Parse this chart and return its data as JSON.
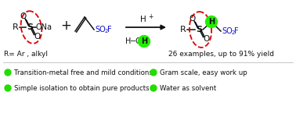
{
  "bg_color": "#ffffff",
  "green_bullet": "#22dd00",
  "green_bright": "#22ee00",
  "red_dashed": "#dd0000",
  "blue_text": "#1111cc",
  "black_text": "#111111",
  "bullet_points_left": [
    "Transition-metal free and mild conditions",
    "Simple isolation to obtain pure products"
  ],
  "bullet_points_right": [
    "Gram scale, easy work up",
    "Water as solvent"
  ],
  "r_label": "R= Ar , alkyl",
  "yield_label": "26 examples, up to 91% yield",
  "figsize": [
    3.78,
    1.45
  ],
  "dpi": 100
}
